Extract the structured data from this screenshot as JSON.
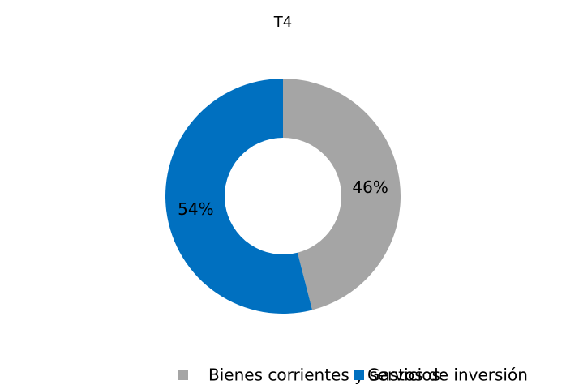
{
  "chart_data": {
    "type": "donut",
    "title": "T4",
    "categories": [
      "Bienes corrientes y servicios",
      "Gastos de inversión"
    ],
    "values": [
      46,
      54
    ],
    "value_labels": [
      "46%",
      "54%"
    ],
    "colors": [
      "#a5a5a5",
      "#0070c0"
    ],
    "legend": "bottom"
  }
}
